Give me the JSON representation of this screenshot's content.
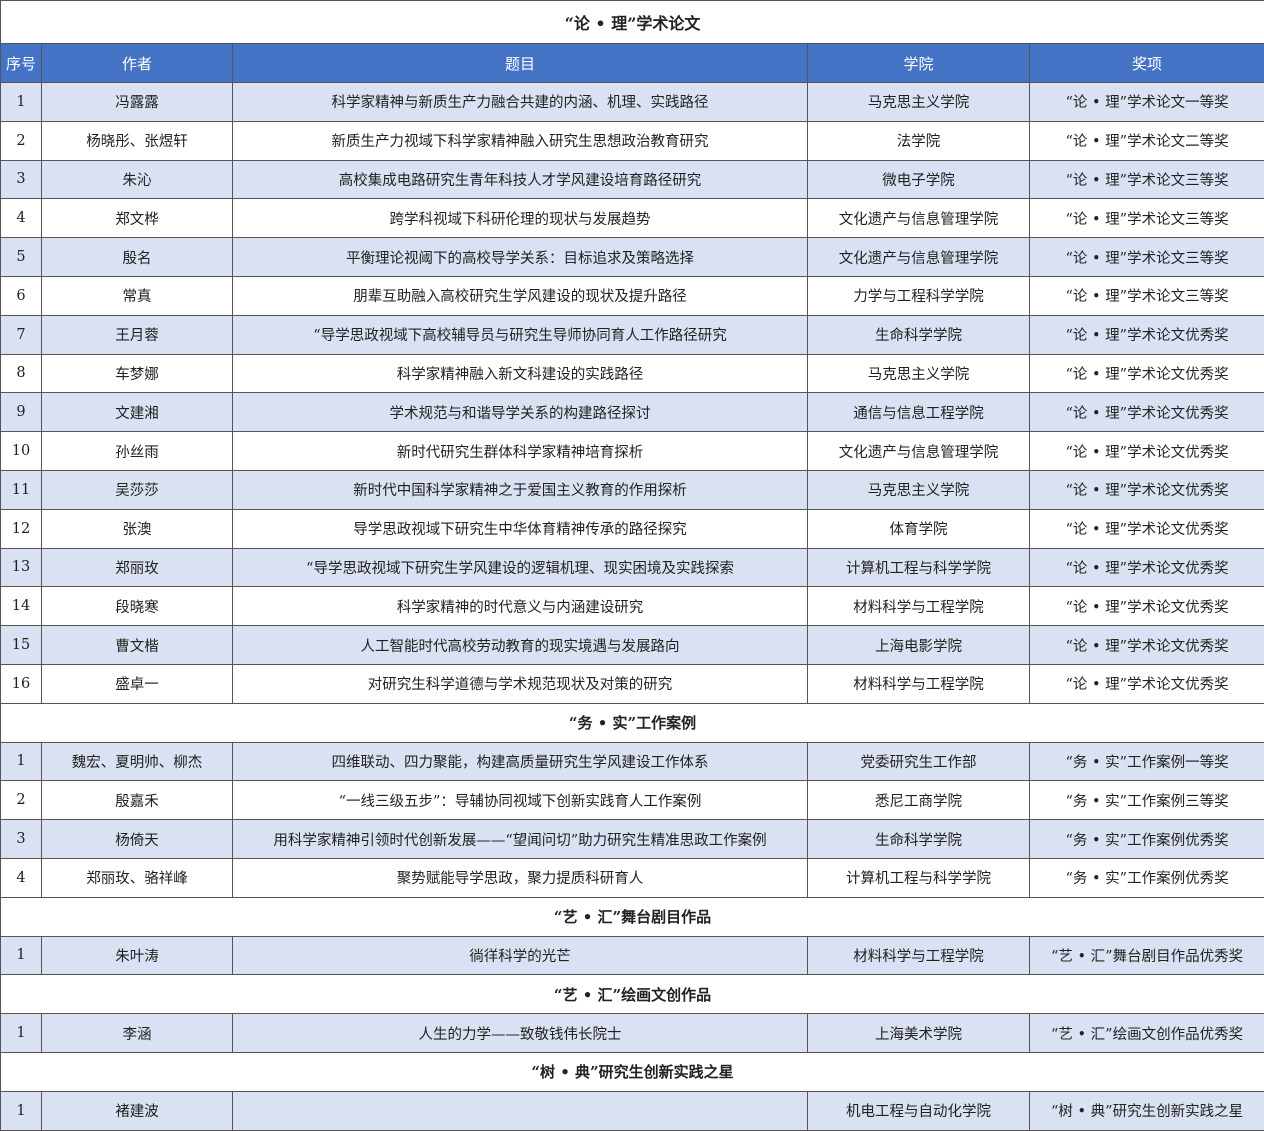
{
  "colors": {
    "header_bg": "#4472c4",
    "header_text": "#ffffff",
    "alt_row_bg": "#d9e1f2"
  },
  "columns": [
    "序号",
    "作者",
    "题目",
    "学院",
    "奖项"
  ],
  "sections": [
    {
      "title": "“论 • 理”学术论文",
      "show_header": true,
      "rows": [
        [
          "1",
          "冯露露",
          "科学家精神与新质生产力融合共建的内涵、机理、实践路径",
          "马克思主义学院",
          "“论 • 理”学术论文一等奖"
        ],
        [
          "2",
          "杨晓彤、张煜轩",
          "新质生产力视域下科学家精神融入研究生思想政治教育研究",
          "法学院",
          "“论 • 理”学术论文二等奖"
        ],
        [
          "3",
          "朱沁",
          "高校集成电路研究生青年科技人才学风建设培育路径研究",
          "微电子学院",
          "“论 • 理”学术论文三等奖"
        ],
        [
          "4",
          "郑文桦",
          "跨学科视域下科研伦理的现状与发展趋势",
          "文化遗产与信息管理学院",
          "“论 • 理”学术论文三等奖"
        ],
        [
          "5",
          "殷名",
          "平衡理论视阈下的高校导学关系：目标追求及策略选择",
          "文化遗产与信息管理学院",
          "“论 • 理”学术论文三等奖"
        ],
        [
          "6",
          "常真",
          "朋辈互助融入高校研究生学风建设的现状及提升路径",
          "力学与工程科学学院",
          "“论 • 理”学术论文三等奖"
        ],
        [
          "7",
          "王月蓉",
          "“导学思政视域下高校辅导员与研究生导师协同育人工作路径研究",
          "生命科学学院",
          "“论 • 理”学术论文优秀奖"
        ],
        [
          "8",
          "车梦娜",
          "科学家精神融入新文科建设的实践路径",
          "马克思主义学院",
          "“论 • 理”学术论文优秀奖"
        ],
        [
          "9",
          "文建湘",
          "学术规范与和谐导学关系的构建路径探讨",
          "通信与信息工程学院",
          "“论 • 理”学术论文优秀奖"
        ],
        [
          "10",
          "孙丝雨",
          "新时代研究生群体科学家精神培育探析",
          "文化遗产与信息管理学院",
          "“论 • 理”学术论文优秀奖"
        ],
        [
          "11",
          "吴莎莎",
          "新时代中国科学家精神之于爱国主义教育的作用探析",
          "马克思主义学院",
          "“论 • 理”学术论文优秀奖"
        ],
        [
          "12",
          "张澳",
          "导学思政视域下研究生中华体育精神传承的路径探究",
          "体育学院",
          "“论 • 理”学术论文优秀奖"
        ],
        [
          "13",
          "郑丽玫",
          "“导学思政视域下研究生学风建设的逻辑机理、现实困境及实践探索",
          "计算机工程与科学学院",
          "“论 • 理”学术论文优秀奖"
        ],
        [
          "14",
          "段晓寒",
          "科学家精神的时代意义与内涵建设研究",
          "材料科学与工程学院",
          "“论 • 理”学术论文优秀奖"
        ],
        [
          "15",
          "曹文楷",
          "人工智能时代高校劳动教育的现实境遇与发展路向",
          "上海电影学院",
          "“论 • 理”学术论文优秀奖"
        ],
        [
          "16",
          "盛卓一",
          "对研究生科学道德与学术规范现状及对策的研究",
          "材料科学与工程学院",
          "“论 • 理”学术论文优秀奖"
        ]
      ]
    },
    {
      "title": "“务 • 实”工作案例",
      "show_header": false,
      "rows": [
        [
          "1",
          "魏宏、夏明帅、柳杰",
          "四维联动、四力聚能，构建高质量研究生学风建设工作体系",
          "党委研究生工作部",
          "“务 • 实”工作案例一等奖"
        ],
        [
          "2",
          "殷嘉禾",
          "“一线三级五步”：导辅协同视域下创新实践育人工作案例",
          "悉尼工商学院",
          "“务 • 实”工作案例三等奖"
        ],
        [
          "3",
          "杨倚天",
          "用科学家精神引领时代创新发展——“望闻问切”助力研究生精准思政工作案例",
          "生命科学学院",
          "“务 • 实”工作案例优秀奖"
        ],
        [
          "4",
          "郑丽玫、骆祥峰",
          "聚势赋能导学思政，聚力提质科研育人",
          "计算机工程与科学学院",
          "“务 • 实”工作案例优秀奖"
        ]
      ]
    },
    {
      "title": "“艺 • 汇”舞台剧目作品",
      "show_header": false,
      "rows": [
        [
          "1",
          "朱叶涛",
          "徜徉科学的光芒",
          "材料科学与工程学院",
          "“艺 • 汇”舞台剧目作品优秀奖"
        ]
      ]
    },
    {
      "title": "“艺 • 汇”绘画文创作品",
      "show_header": false,
      "rows": [
        [
          "1",
          "李涵",
          "人生的力学——致敬钱伟长院士",
          "上海美术学院",
          "“艺 • 汇”绘画文创作品优秀奖"
        ]
      ]
    },
    {
      "title": "“树 • 典”研究生创新实践之星",
      "show_header": false,
      "rows": [
        [
          "1",
          "褚建波",
          "",
          "机电工程与自动化学院",
          "“树 • 典”研究生创新实践之星"
        ]
      ]
    }
  ]
}
